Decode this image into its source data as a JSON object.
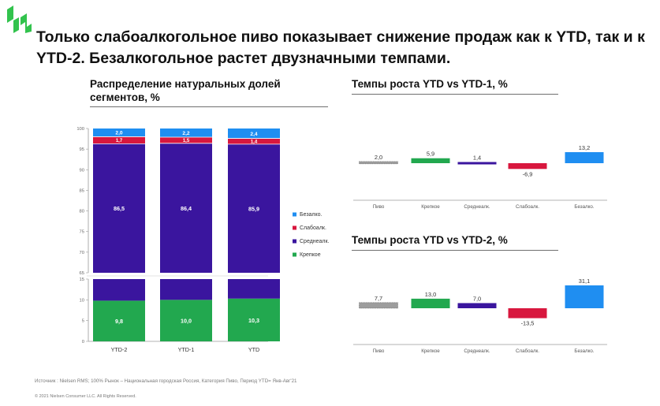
{
  "headline": "Только слабоалкогольное пиво показывает снижение продаж как к YTD, так и к YTD-2. Безалкогольное растет двузначными темпами.",
  "colors": {
    "crepkoe": "#22a84f",
    "srednealk": "#3a159e",
    "slaboalk": "#d8173e",
    "bezalk": "#1f8ef1",
    "pivo": "#8c8c8c",
    "logo": "#32c34d"
  },
  "icons": {
    "logo": "brand-logo-icon"
  },
  "footnotes": {
    "source": "Источник : Nielsen RMS; 100%   Рынок – Национальная  городская  Россия, Категория  Пиво, Период  YTD= Янв-Авг'21",
    "copyright": "© 2021 Nielsen Consumer LLC. All Rights Reserved."
  },
  "chart_data": [
    {
      "type": "bar",
      "stacked": true,
      "broken_axis": true,
      "title": "Распределение натуральных долей сегментов, %",
      "categories": [
        "YTD-2",
        "YTD-1",
        "YTD"
      ],
      "series": [
        {
          "name": "Крепкое",
          "color": "#22a84f",
          "values": [
            9.8,
            10.0,
            10.3
          ]
        },
        {
          "name": "Средне­алк.",
          "values": [
            86.5,
            86.4,
            85.9
          ],
          "color": "#3a159e"
        },
        {
          "name": "Слабоалк.",
          "color": "#d8173e",
          "values": [
            1.7,
            1.5,
            1.4
          ]
        },
        {
          "name": "Безалко.",
          "color": "#1f8ef1",
          "values": [
            2.0,
            2.2,
            2.4
          ]
        }
      ],
      "value_labels": [
        [
          "9,8",
          "86,5",
          "1,7",
          "2,0"
        ],
        [
          "10,0",
          "86,4",
          "1,5",
          "2,2"
        ],
        [
          "10,3",
          "85,9",
          "1,4",
          "2,4"
        ]
      ],
      "upper_axis": {
        "ylim": [
          65,
          100
        ],
        "ticks": [
          "65",
          "70",
          "75",
          "80",
          "85",
          "90",
          "95",
          "100"
        ]
      },
      "lower_axis": {
        "ylim": [
          0,
          15
        ],
        "ticks": [
          "0",
          "5",
          "10",
          "15"
        ]
      },
      "legend": [
        "Безалко.",
        "Слабоалк.",
        "Средне­алк.",
        "Крепкое"
      ],
      "legend_position": "right"
    },
    {
      "type": "bar",
      "title": "Темпы роста YTD vs YTD-1, %",
      "categories": [
        "Пиво",
        "Крепкое",
        "Среднеалк.",
        "Слабоалк.",
        "Безалко."
      ],
      "values": [
        2.0,
        5.9,
        1.4,
        -6.9,
        13.2
      ],
      "value_labels": [
        "2,0",
        "5,9",
        "1,4",
        "-6,9",
        "13,2"
      ],
      "ylim": [
        -13.2,
        13.2
      ]
    },
    {
      "type": "bar",
      "title": "Темпы роста YTD vs YTD-2, %",
      "categories": [
        "Пиво",
        "Крепкое",
        "Среднеалк.",
        "Слабоалк.",
        "Безалко."
      ],
      "values": [
        7.7,
        13.0,
        7.0,
        -13.5,
        31.1
      ],
      "value_labels": [
        "7,7",
        "13,0",
        "7,0",
        "-13,5",
        "31,1"
      ],
      "ylim": [
        -31.1,
        31.1
      ]
    }
  ]
}
